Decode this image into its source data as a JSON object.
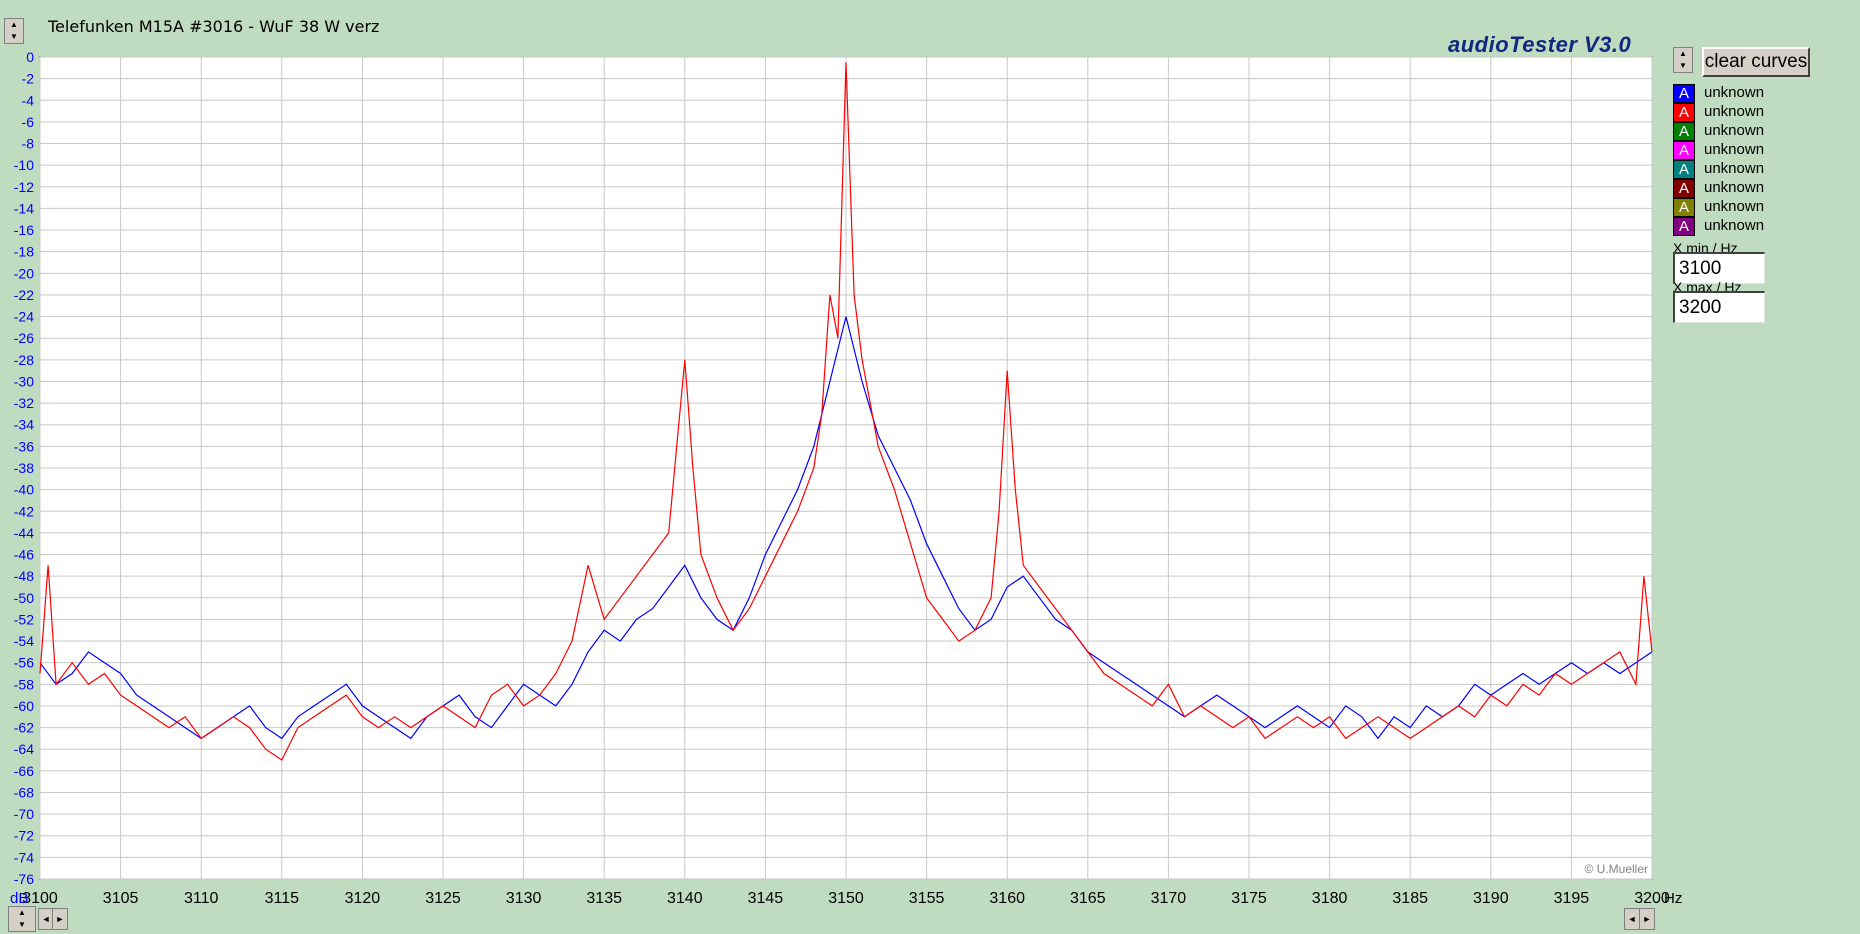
{
  "window": {
    "title": "Telefunken M15A #3016 - WuF 38 W verz",
    "brand": "audioTester  V3.0"
  },
  "controls": {
    "clear_label": "clear curves",
    "xmin_label": "X min / Hz",
    "xmin_value": "3100",
    "xmax_label": "X max / Hz",
    "xmax_value": "3200"
  },
  "legend": [
    {
      "letter": "A",
      "label": "unknown",
      "color": "#0000ff"
    },
    {
      "letter": "A",
      "label": "unknown",
      "color": "#ff0000"
    },
    {
      "letter": "A",
      "label": "unknown",
      "color": "#008000"
    },
    {
      "letter": "A",
      "label": "unknown",
      "color": "#ff00ff"
    },
    {
      "letter": "A",
      "label": "unknown",
      "color": "#008080"
    },
    {
      "letter": "A",
      "label": "unknown",
      "color": "#800000"
    },
    {
      "letter": "A",
      "label": "unknown",
      "color": "#808000"
    },
    {
      "letter": "A",
      "label": "unknown",
      "color": "#800080"
    }
  ],
  "copyright": "© U.Mueller",
  "chart_data": {
    "type": "line",
    "title": "",
    "xlabel": "Hz",
    "ylabel": "dB",
    "xlim": [
      3100,
      3200
    ],
    "ylim": [
      -76,
      0
    ],
    "x_ticks": [
      3100,
      3105,
      3110,
      3115,
      3120,
      3125,
      3130,
      3135,
      3140,
      3145,
      3150,
      3155,
      3160,
      3165,
      3170,
      3175,
      3180,
      3185,
      3190,
      3195,
      3200
    ],
    "y_ticks": [
      0,
      -2,
      -4,
      -6,
      -8,
      -10,
      -12,
      -14,
      -16,
      -18,
      -20,
      -22,
      -24,
      -26,
      -28,
      -30,
      -32,
      -34,
      -36,
      -38,
      -40,
      -42,
      -44,
      -46,
      -48,
      -50,
      -52,
      -54,
      -56,
      -58,
      -60,
      -62,
      -64,
      -66,
      -68,
      -70,
      -72,
      -74,
      -76
    ],
    "grid": true,
    "series": [
      {
        "color": "#0000ff",
        "x": [
          3100,
          3101,
          3102,
          3103,
          3104,
          3105,
          3106,
          3107,
          3108,
          3109,
          3110,
          3111,
          3112,
          3113,
          3114,
          3115,
          3116,
          3117,
          3118,
          3119,
          3120,
          3121,
          3122,
          3123,
          3124,
          3125,
          3126,
          3127,
          3128,
          3129,
          3130,
          3131,
          3132,
          3133,
          3134,
          3135,
          3136,
          3137,
          3138,
          3139,
          3140,
          3141,
          3142,
          3143,
          3144,
          3145,
          3146,
          3147,
          3148,
          3149,
          3150,
          3151,
          3152,
          3153,
          3154,
          3155,
          3156,
          3157,
          3158,
          3159,
          3160,
          3161,
          3162,
          3163,
          3164,
          3165,
          3166,
          3167,
          3168,
          3169,
          3170,
          3171,
          3172,
          3173,
          3174,
          3175,
          3176,
          3177,
          3178,
          3179,
          3180,
          3181,
          3182,
          3183,
          3184,
          3185,
          3186,
          3187,
          3188,
          3189,
          3190,
          3191,
          3192,
          3193,
          3194,
          3195,
          3196,
          3197,
          3198,
          3199,
          3200
        ],
        "y": [
          -56,
          -58,
          -57,
          -55,
          -56,
          -57,
          -59,
          -60,
          -61,
          -62,
          -63,
          -62,
          -61,
          -60,
          -62,
          -63,
          -61,
          -60,
          -59,
          -58,
          -60,
          -61,
          -62,
          -63,
          -61,
          -60,
          -59,
          -61,
          -62,
          -60,
          -58,
          -59,
          -60,
          -58,
          -55,
          -53,
          -54,
          -52,
          -51,
          -49,
          -47,
          -50,
          -52,
          -53,
          -50,
          -46,
          -43,
          -40,
          -36,
          -30,
          -24,
          -30,
          -35,
          -38,
          -41,
          -45,
          -48,
          -51,
          -53,
          -52,
          -49,
          -48,
          -50,
          -52,
          -53,
          -55,
          -56,
          -57,
          -58,
          -59,
          -60,
          -61,
          -60,
          -59,
          -60,
          -61,
          -62,
          -61,
          -60,
          -61,
          -62,
          -60,
          -61,
          -63,
          -61,
          -62,
          -60,
          -61,
          -60,
          -58,
          -59,
          -58,
          -57,
          -58,
          -57,
          -56,
          -57,
          -56,
          -57,
          -56,
          -55
        ]
      },
      {
        "color": "#ff0000",
        "x": [
          3100,
          3100.5,
          3101,
          3102,
          3103,
          3104,
          3105,
          3106,
          3107,
          3108,
          3109,
          3110,
          3111,
          3112,
          3113,
          3114,
          3115,
          3116,
          3117,
          3118,
          3119,
          3120,
          3121,
          3122,
          3123,
          3124,
          3125,
          3126,
          3127,
          3128,
          3129,
          3130,
          3131,
          3132,
          3133,
          3134,
          3135,
          3136,
          3137,
          3138,
          3139,
          3139.5,
          3140,
          3140.5,
          3141,
          3142,
          3143,
          3144,
          3145,
          3146,
          3147,
          3148,
          3148.5,
          3149,
          3149.5,
          3150,
          3150.5,
          3151,
          3151.5,
          3152,
          3153,
          3154,
          3155,
          3156,
          3157,
          3158,
          3159,
          3159.5,
          3160,
          3160.5,
          3161,
          3162,
          3163,
          3164,
          3165,
          3166,
          3167,
          3168,
          3169,
          3170,
          3171,
          3172,
          3173,
          3174,
          3175,
          3176,
          3177,
          3178,
          3179,
          3180,
          3181,
          3182,
          3183,
          3184,
          3185,
          3186,
          3187,
          3188,
          3189,
          3190,
          3191,
          3192,
          3193,
          3194,
          3195,
          3196,
          3197,
          3198,
          3199,
          3199.5,
          3200
        ],
        "y": [
          -57,
          -47,
          -58,
          -56,
          -58,
          -57,
          -59,
          -60,
          -61,
          -62,
          -61,
          -63,
          -62,
          -61,
          -62,
          -64,
          -65,
          -62,
          -61,
          -60,
          -59,
          -61,
          -62,
          -61,
          -62,
          -61,
          -60,
          -61,
          -62,
          -59,
          -58,
          -60,
          -59,
          -57,
          -54,
          -47,
          -52,
          -50,
          -48,
          -46,
          -44,
          -36,
          -28,
          -38,
          -46,
          -50,
          -53,
          -51,
          -48,
          -45,
          -42,
          -38,
          -33,
          -22,
          -26,
          -0.5,
          -22,
          -28,
          -32,
          -36,
          -40,
          -45,
          -50,
          -52,
          -54,
          -53,
          -50,
          -42,
          -29,
          -40,
          -47,
          -49,
          -51,
          -53,
          -55,
          -57,
          -58,
          -59,
          -60,
          -58,
          -61,
          -60,
          -61,
          -62,
          -61,
          -63,
          -62,
          -61,
          -62,
          -61,
          -63,
          -62,
          -61,
          -62,
          -63,
          -62,
          -61,
          -60,
          -61,
          -59,
          -60,
          -58,
          -59,
          -57,
          -58,
          -57,
          -56,
          -55,
          -58,
          -48,
          -55
        ]
      }
    ]
  }
}
